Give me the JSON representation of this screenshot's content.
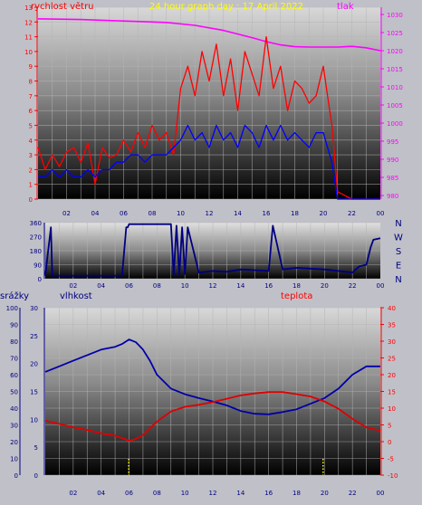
{
  "chart_data": [
    {
      "type": "line",
      "title": "24 hour graph day : 17 April 2022",
      "left_axis_label": "rychlost větru",
      "right_axis_label": "tlak",
      "x_tick_labels": [
        "02",
        "04",
        "06",
        "08",
        "10",
        "12",
        "14",
        "16",
        "18",
        "20",
        "22",
        "00"
      ],
      "left_ticks": [
        "0",
        "1",
        "2",
        "3",
        "4",
        "5",
        "6",
        "7",
        "8",
        "9",
        "10",
        "11",
        "12",
        "13"
      ],
      "right_ticks": [
        "980",
        "985",
        "990",
        "995",
        "1000",
        "1005",
        "1010",
        "1015",
        "1020",
        "1025",
        "1030"
      ],
      "ylim_left": [
        0,
        13
      ],
      "ylim_right": [
        979,
        1032
      ],
      "xlim": [
        0,
        24
      ],
      "series": [
        {
          "axis": "right",
          "color": "#ff00ff",
          "x": [
            0,
            3,
            6,
            9,
            11,
            13,
            15,
            16,
            17,
            18,
            19,
            20,
            21,
            22,
            23,
            24
          ],
          "values": [
            1028.8,
            1028.6,
            1028.2,
            1027.8,
            1027.0,
            1025.6,
            1023.6,
            1022.5,
            1021.6,
            1021.1,
            1021.0,
            1021.0,
            1021.0,
            1021.2,
            1020.8,
            1020.0
          ]
        },
        {
          "axis": "left",
          "color": "#ff0000",
          "x": [
            0,
            0.5,
            1,
            1.5,
            2,
            2.5,
            3,
            3.5,
            4,
            4.5,
            5,
            5.5,
            6,
            6.5,
            7,
            7.5,
            8,
            8.5,
            9,
            9.5,
            10,
            10.5,
            11,
            11.5,
            12,
            12.5,
            13,
            13.5,
            14,
            14.5,
            15,
            15.5,
            16,
            16.5,
            17,
            17.5,
            18,
            18.5,
            19,
            19.5,
            20,
            20.3,
            20.6,
            21,
            22,
            23,
            24
          ],
          "values": [
            3.5,
            2.0,
            3.0,
            2.2,
            3.2,
            3.5,
            2.5,
            3.8,
            1.0,
            3.5,
            2.8,
            3.0,
            4.0,
            3.2,
            4.5,
            3.5,
            5.0,
            4.0,
            4.5,
            3.0,
            7.5,
            9.0,
            7.0,
            10.0,
            8.0,
            10.5,
            7.0,
            9.5,
            6.0,
            10.0,
            8.5,
            7.0,
            11.0,
            7.5,
            9.0,
            6.0,
            8.0,
            7.5,
            6.5,
            7.0,
            9.0,
            7.0,
            5.0,
            0.5,
            0.0,
            0.0,
            0.0
          ]
        },
        {
          "axis": "left",
          "color": "#0000ff",
          "x": [
            0,
            0.5,
            1,
            1.5,
            2,
            2.5,
            3,
            3.5,
            4,
            4.5,
            5,
            5.5,
            6,
            6.5,
            7,
            7.5,
            8,
            8.5,
            9,
            9.5,
            10,
            10.5,
            11,
            11.5,
            12,
            12.5,
            13,
            13.5,
            14,
            14.5,
            15,
            15.5,
            16,
            16.5,
            17,
            17.5,
            18,
            18.5,
            19,
            19.5,
            20,
            20.3,
            20.6,
            21,
            22,
            23,
            24
          ],
          "values": [
            1.5,
            1.5,
            2.0,
            1.5,
            2.0,
            1.5,
            1.5,
            2.0,
            1.5,
            2.0,
            2.0,
            2.5,
            2.5,
            3.0,
            3.0,
            2.5,
            3.0,
            3.0,
            3.0,
            3.5,
            4.0,
            5.0,
            4.0,
            4.5,
            3.5,
            5.0,
            4.0,
            4.5,
            3.5,
            5.0,
            4.5,
            3.5,
            5.0,
            4.0,
            5.0,
            4.0,
            4.5,
            4.0,
            3.5,
            4.5,
            4.5,
            3.5,
            2.5,
            0.0,
            0.0,
            0.0,
            0.0
          ]
        }
      ]
    },
    {
      "type": "line",
      "right_labels": [
        "N",
        "W",
        "S",
        "E",
        "N"
      ],
      "left_ticks": [
        "0",
        "90",
        "180",
        "270",
        "360"
      ],
      "x_tick_labels": [
        "02",
        "04",
        "06",
        "08",
        "10",
        "12",
        "14",
        "16",
        "18",
        "20",
        "22",
        "00"
      ],
      "ylim": [
        0,
        360
      ],
      "xlim": [
        0,
        24
      ],
      "series": [
        {
          "name": "",
          "color": "#000080",
          "x": [
            0,
            0.4,
            0.5,
            5.5,
            5.8,
            5.9,
            6.0,
            9.0,
            9.2,
            9.4,
            9.6,
            9.8,
            10.0,
            10.2,
            11.0,
            12.0,
            13.0,
            14.0,
            15.0,
            16.0,
            16.3,
            17.0,
            18.0,
            19.0,
            20.0,
            21.0,
            22.0,
            22.5,
            23.0,
            23.3,
            23.5,
            24.0
          ],
          "values": [
            20,
            330,
            20,
            20,
            330,
            330,
            350,
            350,
            20,
            340,
            20,
            330,
            30,
            330,
            40,
            50,
            45,
            60,
            55,
            50,
            340,
            60,
            70,
            65,
            60,
            50,
            40,
            80,
            90,
            200,
            250,
            260
          ]
        }
      ]
    },
    {
      "type": "line",
      "labels": {
        "left1": "srážky",
        "left2": "vlhkost",
        "right": "teplota"
      },
      "left_ticks_precip": [
        "0",
        "10",
        "20",
        "30",
        "40",
        "50",
        "60",
        "70",
        "80",
        "90",
        "100"
      ],
      "left_ticks_humidity": [
        "0",
        "5",
        "10",
        "15",
        "20",
        "25",
        "30"
      ],
      "right_ticks": [
        "-10",
        "-5",
        "0",
        "5",
        "10",
        "15",
        "20",
        "25",
        "30",
        "35",
        "40"
      ],
      "x_tick_labels": [
        "02",
        "04",
        "06",
        "08",
        "10",
        "12",
        "14",
        "16",
        "18",
        "20",
        "22",
        "00"
      ],
      "ylim_humidity": [
        0,
        30
      ],
      "ylim_temp": [
        -10,
        40
      ],
      "xlim": [
        0,
        24
      ],
      "series": [
        {
          "axis": "humidity",
          "color": "#0000aa",
          "x": [
            0,
            1,
            2,
            3,
            4,
            5,
            5.5,
            6,
            6.5,
            7,
            7.5,
            8,
            9,
            10,
            11,
            12,
            13,
            14,
            15,
            16,
            17,
            18,
            19,
            20,
            21,
            22,
            23,
            24
          ],
          "values": [
            18.5,
            19.5,
            20.5,
            21.5,
            22.5,
            23.0,
            23.5,
            24.3,
            23.8,
            22.5,
            20.5,
            18.0,
            15.5,
            14.5,
            13.8,
            13.2,
            12.5,
            11.5,
            11.0,
            10.9,
            11.3,
            11.8,
            12.8,
            13.8,
            15.5,
            18.0,
            19.5,
            19.5
          ]
        },
        {
          "axis": "temp",
          "color": "#e00000",
          "x": [
            0,
            1,
            2,
            3,
            4,
            5,
            6,
            6.5,
            7,
            7.5,
            8,
            9,
            10,
            11,
            12,
            13,
            14,
            15,
            16,
            17,
            18,
            19,
            20,
            21,
            22,
            23,
            24
          ],
          "values": [
            6.3,
            5.3,
            4.3,
            3.5,
            2.5,
            1.8,
            0.3,
            0.8,
            2.0,
            4.0,
            6.0,
            9.0,
            10.4,
            11.0,
            11.8,
            12.8,
            13.8,
            14.4,
            14.8,
            14.8,
            14.2,
            13.5,
            12.0,
            9.8,
            6.8,
            4.3,
            3.3
          ]
        },
        {
          "axis": "precip",
          "color": "#ffff00",
          "style": "dotted-markers",
          "x": [
            5.98,
            19.9
          ],
          "values": [
            0,
            0
          ]
        }
      ]
    }
  ]
}
